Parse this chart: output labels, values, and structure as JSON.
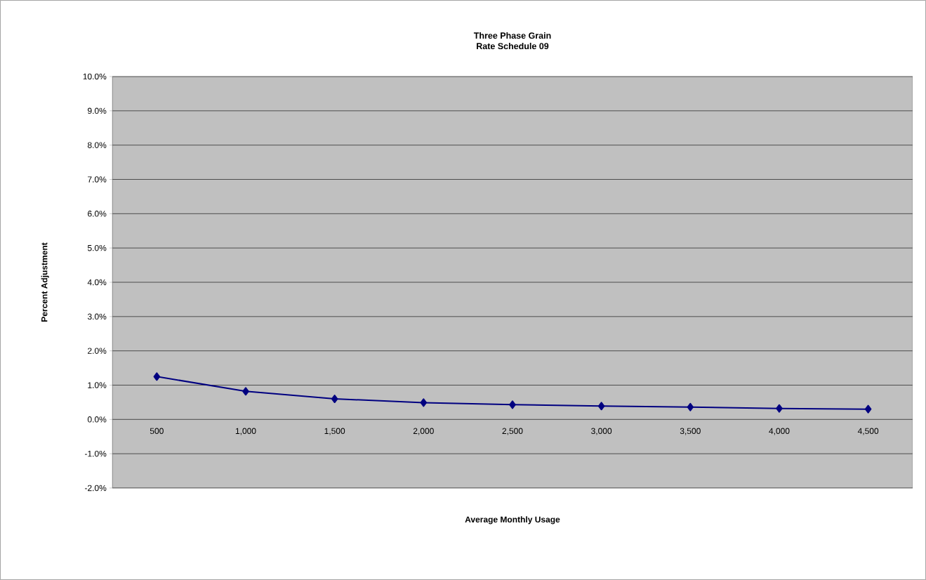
{
  "chart_data": {
    "type": "line",
    "title": "Three Phase Grain",
    "subtitle": "Rate Schedule 09",
    "xlabel": "Average Monthly Usage",
    "ylabel": "Percent Adjustment",
    "categories": [
      "500",
      "1,000",
      "1,500",
      "2,000",
      "2,500",
      "3,000",
      "3,500",
      "4,000",
      "4,500"
    ],
    "series": [
      {
        "color": "#000080",
        "values": [
          1.25,
          0.82,
          0.6,
          0.49,
          0.43,
          0.39,
          0.36,
          0.32,
          0.3
        ]
      }
    ],
    "marker": "diamond",
    "grid": "y",
    "ylim": [
      -2,
      10
    ],
    "yticks": [
      {
        "value": -2,
        "label": "-2.0%"
      },
      {
        "value": -1,
        "label": "-1.0%"
      },
      {
        "value": 0,
        "label": "0.0%"
      },
      {
        "value": 1,
        "label": "1.0%"
      },
      {
        "value": 2,
        "label": "2.0%"
      },
      {
        "value": 3,
        "label": "3.0%"
      },
      {
        "value": 4,
        "label": "4.0%"
      },
      {
        "value": 5,
        "label": "5.0%"
      },
      {
        "value": 6,
        "label": "6.0%"
      },
      {
        "value": 7,
        "label": "7.0%"
      },
      {
        "value": 8,
        "label": "8.0%"
      },
      {
        "value": 9,
        "label": "9.0%"
      },
      {
        "value": 10,
        "label": "10.0%"
      }
    ]
  }
}
